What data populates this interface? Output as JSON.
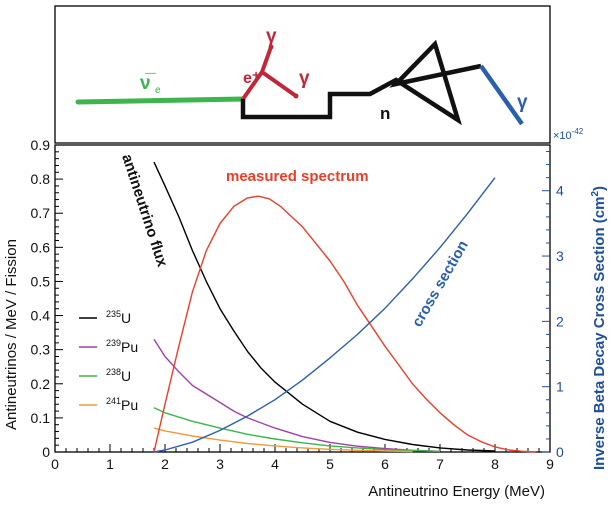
{
  "diagram": {
    "nu_label": "ν̅",
    "nu_sub": "e",
    "positron_label": "e⁺",
    "gamma1": "γ",
    "gamma2": "γ",
    "neutron_label": "n",
    "gamma3": "γ",
    "colors": {
      "neutrino": "#3db54a",
      "positron": "#c0283a",
      "neutron": "#111111",
      "capture_gamma": "#2a5fad"
    }
  },
  "chart_data": {
    "type": "line",
    "xlabel": "Antineutrino Energy (MeV)",
    "ylabel": "Antineutrinos / MeV / Fission",
    "y2label": "Inverse Beta Decay Cross Section (cm",
    "y2label_sup": "2",
    "y2label_end": ")",
    "y2_exponent": "×10",
    "y2_exponent_power": "-42",
    "xlim": [
      0,
      9
    ],
    "ylim": [
      0,
      0.9
    ],
    "y2lim": [
      0,
      4.7
    ],
    "xticks": [
      "0",
      "1",
      "2",
      "3",
      "4",
      "5",
      "6",
      "7",
      "8",
      "9"
    ],
    "yticks": [
      "0",
      "0.1",
      "0.2",
      "0.3",
      "0.4",
      "0.5",
      "0.6",
      "0.7",
      "0.8",
      "0.9"
    ],
    "y2ticks": [
      "0",
      "1",
      "2",
      "3",
      "4"
    ],
    "annotations": {
      "flux": "antineutrino flux",
      "measured": "measured spectrum",
      "cross": "cross section"
    },
    "series": [
      {
        "name": "U",
        "isotope_mass": "235",
        "color": "#000000",
        "axis": "left",
        "x": [
          1.8,
          2.0,
          2.25,
          2.5,
          2.75,
          3.0,
          3.25,
          3.5,
          3.75,
          4.0,
          4.5,
          5.0,
          5.5,
          6.0,
          6.5,
          7.0,
          7.5,
          8.0
        ],
        "y": [
          0.85,
          0.78,
          0.69,
          0.59,
          0.5,
          0.42,
          0.355,
          0.295,
          0.245,
          0.205,
          0.14,
          0.09,
          0.058,
          0.037,
          0.022,
          0.012,
          0.006,
          0.003
        ]
      },
      {
        "name": "Pu",
        "isotope_mass": "239",
        "color": "#a040a8",
        "axis": "left",
        "x": [
          1.8,
          2.0,
          2.25,
          2.5,
          2.75,
          3.0,
          3.25,
          3.5,
          4.0,
          4.5,
          5.0,
          5.5,
          6.0,
          6.5,
          7.0
        ],
        "y": [
          0.33,
          0.28,
          0.235,
          0.195,
          0.17,
          0.145,
          0.12,
          0.1,
          0.07,
          0.045,
          0.028,
          0.017,
          0.01,
          0.005,
          0.002
        ]
      },
      {
        "name": "U",
        "isotope_mass": "238",
        "color": "#3db54a",
        "axis": "left",
        "x": [
          1.8,
          2.0,
          2.5,
          3.0,
          3.5,
          4.0,
          4.5,
          5.0,
          5.5,
          6.0,
          6.5,
          7.0
        ],
        "y": [
          0.13,
          0.115,
          0.09,
          0.07,
          0.052,
          0.038,
          0.027,
          0.018,
          0.012,
          0.007,
          0.004,
          0.002
        ]
      },
      {
        "name": "Pu",
        "isotope_mass": "241",
        "color": "#f39a3c",
        "axis": "left",
        "x": [
          1.8,
          2.0,
          2.5,
          3.0,
          3.5,
          4.0,
          4.5,
          5.0,
          5.5,
          6.0,
          6.5
        ],
        "y": [
          0.07,
          0.062,
          0.047,
          0.035,
          0.025,
          0.018,
          0.012,
          0.008,
          0.005,
          0.003,
          0.0015
        ]
      },
      {
        "name": "measured spectrum",
        "color": "#e8402a",
        "axis": "left",
        "x": [
          1.8,
          2.0,
          2.25,
          2.5,
          2.75,
          3.0,
          3.25,
          3.5,
          3.7,
          3.9,
          4.1,
          4.3,
          4.5,
          4.75,
          5.0,
          5.25,
          5.5,
          5.75,
          6.0,
          6.25,
          6.5,
          6.75,
          7.0,
          7.25,
          7.5,
          7.75,
          8.0,
          8.25,
          8.5,
          8.75
        ],
        "y": [
          0.0,
          0.14,
          0.31,
          0.47,
          0.59,
          0.67,
          0.72,
          0.745,
          0.75,
          0.742,
          0.72,
          0.69,
          0.66,
          0.61,
          0.56,
          0.5,
          0.43,
          0.37,
          0.31,
          0.255,
          0.2,
          0.155,
          0.115,
          0.08,
          0.05,
          0.03,
          0.015,
          0.006,
          0.002,
          0.0
        ]
      },
      {
        "name": "cross section",
        "color": "#2a5fad",
        "axis": "right",
        "x": [
          1.8,
          2.0,
          2.5,
          3.0,
          3.5,
          4.0,
          4.5,
          5.0,
          5.5,
          6.0,
          6.5,
          7.0,
          7.5,
          8.0
        ],
        "y": [
          0.0,
          0.03,
          0.15,
          0.33,
          0.55,
          0.8,
          1.1,
          1.44,
          1.8,
          2.2,
          2.65,
          3.13,
          3.65,
          4.2
        ]
      }
    ]
  }
}
